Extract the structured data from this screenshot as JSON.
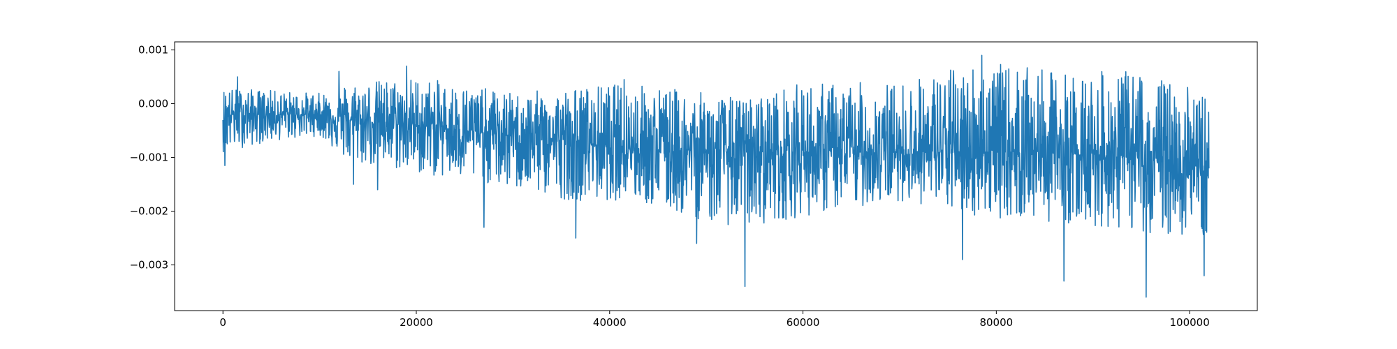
{
  "chart_data": {
    "type": "line",
    "title": "",
    "xlabel": "",
    "ylabel": "",
    "xlim": [
      -5000,
      107000
    ],
    "ylim": [
      -0.00385,
      0.00115
    ],
    "x_ticks": [
      0,
      20000,
      40000,
      60000,
      80000,
      100000
    ],
    "x_tick_labels": [
      "0",
      "20000",
      "40000",
      "60000",
      "80000",
      "100000"
    ],
    "y_ticks": [
      0.001,
      0.0,
      -0.001,
      -0.002,
      -0.003
    ],
    "y_tick_labels": [
      "0.001",
      "0.000",
      "−0.001",
      "−0.002",
      "−0.003"
    ],
    "grid": false,
    "legend": "none",
    "series": [
      {
        "color": "#1f77b4",
        "x_start": 0,
        "x_end": 102000,
        "envelope": {
          "x": [
            0,
            5000,
            10000,
            13000,
            20000,
            30000,
            36000,
            42000,
            50000,
            54000,
            60000,
            70000,
            78000,
            86000,
            95000,
            102000
          ],
          "center": [
            -0.0002,
            -0.0002,
            -0.0002,
            -0.0003,
            -0.0004,
            -0.0006,
            -0.0007,
            -0.0008,
            -0.0009,
            -0.0009,
            -0.0009,
            -0.0009,
            -0.0009,
            -0.0009,
            -0.001,
            -0.0012
          ],
          "upper": [
            0.0003,
            0.00025,
            0.0002,
            0.0004,
            0.0005,
            0.0002,
            0.0003,
            0.0004,
            0.0002,
            0.0001,
            0.0004,
            0.0004,
            0.0008,
            0.0006,
            0.0006,
            0.0002
          ],
          "lower": [
            -0.0009,
            -0.0007,
            -0.0006,
            -0.0011,
            -0.0013,
            -0.0016,
            -0.0018,
            -0.0018,
            -0.0022,
            -0.0023,
            -0.0021,
            -0.0018,
            -0.0021,
            -0.0022,
            -0.0024,
            -0.0025
          ]
        },
        "peaks": [
          {
            "x": 200,
            "y": -0.00115
          },
          {
            "x": 1500,
            "y": 0.0005
          },
          {
            "x": 12000,
            "y": 0.0006
          },
          {
            "x": 13500,
            "y": -0.0015
          },
          {
            "x": 16000,
            "y": -0.0016
          },
          {
            "x": 19000,
            "y": 0.0007
          },
          {
            "x": 27000,
            "y": -0.0023
          },
          {
            "x": 36500,
            "y": -0.0025
          },
          {
            "x": 41500,
            "y": 0.00045
          },
          {
            "x": 49000,
            "y": -0.0026
          },
          {
            "x": 54000,
            "y": -0.0034
          },
          {
            "x": 78500,
            "y": 0.0009
          },
          {
            "x": 76500,
            "y": -0.0029
          },
          {
            "x": 87000,
            "y": -0.0033
          },
          {
            "x": 95500,
            "y": -0.0036
          },
          {
            "x": 101500,
            "y": -0.0032
          }
        ]
      }
    ]
  }
}
